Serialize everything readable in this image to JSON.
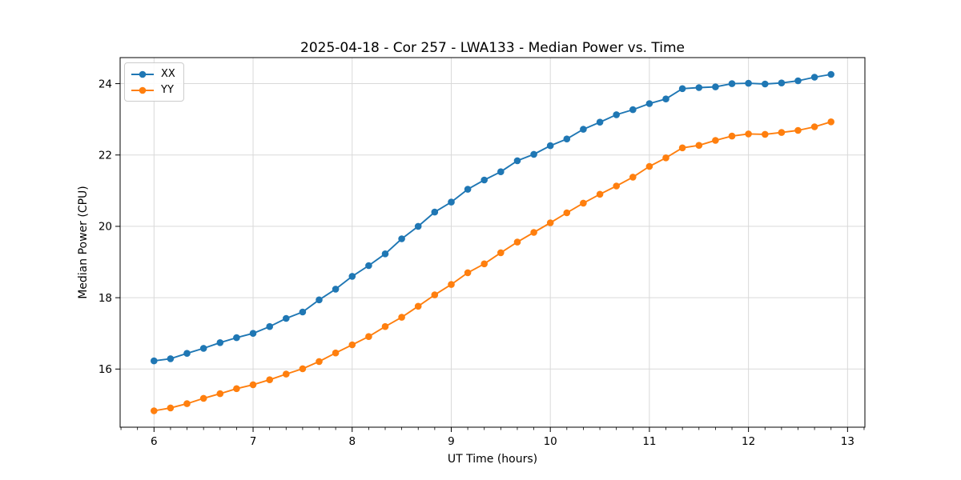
{
  "chart_data": {
    "type": "line",
    "title": "2025-04-18 - Cor 257 - LWA133 - Median Power vs. Time",
    "xlabel": "UT Time (hours)",
    "ylabel": "Median Power (CPU)",
    "x": [
      6.0,
      6.1667,
      6.3333,
      6.5,
      6.6667,
      6.8333,
      7.0,
      7.1667,
      7.3333,
      7.5,
      7.6667,
      7.8333,
      8.0,
      8.1667,
      8.3333,
      8.5,
      8.6667,
      8.8333,
      9.0,
      9.1667,
      9.3333,
      9.5,
      9.6667,
      9.8333,
      10.0,
      10.1667,
      10.3333,
      10.5,
      10.6667,
      10.8333,
      11.0,
      11.1667,
      11.3333,
      11.5,
      11.6667,
      11.8333,
      12.0,
      12.1667,
      12.3333,
      12.5,
      12.6667,
      12.8333
    ],
    "series": [
      {
        "name": "XX",
        "color": "#1f77b4",
        "values": [
          16.23,
          16.29,
          16.44,
          16.58,
          16.74,
          16.88,
          17.0,
          17.19,
          17.42,
          17.6,
          17.94,
          18.24,
          18.6,
          18.9,
          19.23,
          19.65,
          20.0,
          20.4,
          20.68,
          21.04,
          21.3,
          21.53,
          21.84,
          22.02,
          22.26,
          22.45,
          22.72,
          22.92,
          23.13,
          23.27,
          23.44,
          23.57,
          23.86,
          23.89,
          23.91,
          24.0,
          24.01,
          23.99,
          24.02,
          24.08,
          24.18,
          24.26
        ]
      },
      {
        "name": "YY",
        "color": "#ff7f0e",
        "values": [
          14.83,
          14.91,
          15.03,
          15.18,
          15.31,
          15.45,
          15.56,
          15.7,
          15.86,
          16.01,
          16.21,
          16.45,
          16.68,
          16.91,
          17.19,
          17.45,
          17.76,
          18.08,
          18.37,
          18.7,
          18.95,
          19.26,
          19.56,
          19.83,
          20.1,
          20.38,
          20.65,
          20.9,
          21.13,
          21.38,
          21.68,
          21.92,
          22.2,
          22.27,
          22.41,
          22.53,
          22.59,
          22.58,
          22.63,
          22.69,
          22.79,
          22.93
        ]
      }
    ],
    "xlim": [
      5.658,
      13.175
    ],
    "ylim": [
      14.37,
      24.73
    ],
    "xticks": [
      6,
      7,
      8,
      9,
      10,
      11,
      12,
      13
    ],
    "yticks": [
      16,
      18,
      20,
      22,
      24
    ],
    "x_minor_step": 0.166667,
    "grid": true,
    "grid_color": "#d9d9d9",
    "spine_color": "#000000",
    "legend_position": "upper-left",
    "marker": "o"
  }
}
